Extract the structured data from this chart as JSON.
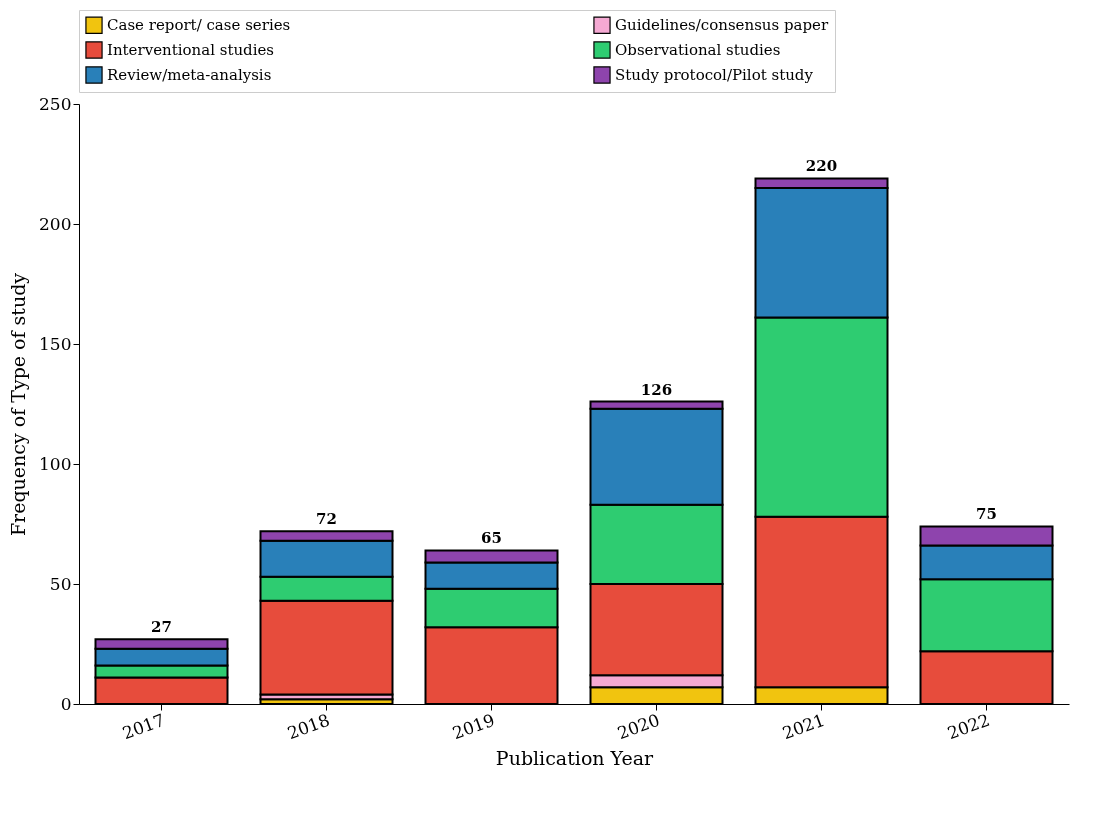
{
  "chart_data": {
    "type": "bar",
    "stacked": true,
    "xlabel": "Publication Year",
    "ylabel": "Frequency of Type of study",
    "categories": [
      "2017",
      "2018",
      "2019",
      "2020",
      "2021",
      "2022"
    ],
    "series": [
      {
        "name": "Case report/ case series",
        "color": "#f1c40f",
        "values": [
          0,
          2,
          null,
          7,
          7,
          null
        ]
      },
      {
        "name": "Guidelines/consensus paper",
        "color": "#f5a9d3",
        "values": [
          0,
          2,
          0,
          5,
          null,
          0
        ]
      },
      {
        "name": "Interventional studies",
        "color": "#e74c3c",
        "values": [
          11,
          39,
          32,
          38,
          71,
          22
        ]
      },
      {
        "name": "Observational studies",
        "color": "#2ecc71",
        "values": [
          5,
          10,
          16,
          33,
          83,
          30
        ]
      },
      {
        "name": "Review/meta-analysis",
        "color": "#2980b9",
        "values": [
          7,
          15,
          11,
          40,
          54,
          14
        ]
      },
      {
        "name": "Study protocol/Pilot study",
        "color": "#8e44ad",
        "values": [
          4,
          4,
          5,
          3,
          4,
          8
        ]
      }
    ],
    "totals": [
      "27",
      "72",
      "65",
      "126",
      "220",
      "75"
    ],
    "ylim": [
      0,
      250
    ],
    "yticks": [
      0,
      50,
      100,
      150,
      200,
      250
    ],
    "grid": false,
    "legend": "top"
  }
}
